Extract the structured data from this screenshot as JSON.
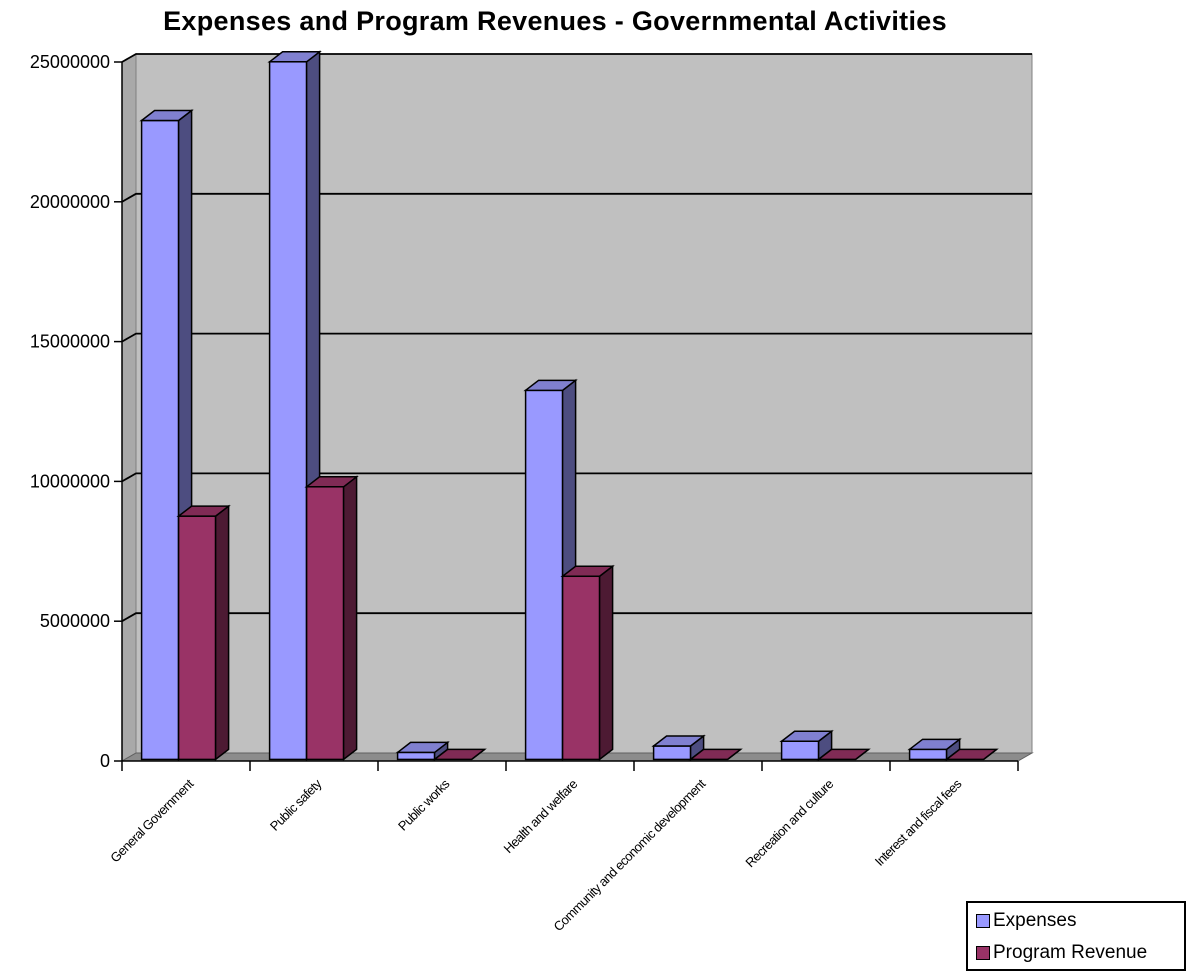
{
  "chart_data": {
    "type": "bar",
    "title": "Expenses and Program Revenues - Governmental Activities",
    "categories": [
      "General Government",
      "Public safety",
      "Public works",
      "Health and welfare",
      "Community and economic development",
      "Recreation and culture",
      "Interest and fiscal fees"
    ],
    "series": [
      {
        "name": "Expenses",
        "color": "#9999ff",
        "side_color": "#4d4d80",
        "top_color": "#8080d0",
        "values": [
          22850000,
          24950000,
          250000,
          13200000,
          480000,
          650000,
          360000
        ]
      },
      {
        "name": "Program Revenue",
        "color": "#993366",
        "side_color": "#4d1a33",
        "top_color": "#802b55",
        "values": [
          8700000,
          9750000,
          0,
          6550000,
          0,
          0,
          0
        ]
      }
    ],
    "ylim": [
      0,
      25000000
    ],
    "yticks": [
      0,
      5000000,
      10000000,
      15000000,
      20000000,
      25000000
    ],
    "ytick_labels": [
      "0",
      "5000000",
      "10000000",
      "15000000",
      "20000000",
      "25000000"
    ],
    "grid": true,
    "legend_position": "bottom-right",
    "wall_color": "#c0c0c0",
    "xlabel": "",
    "ylabel": ""
  }
}
